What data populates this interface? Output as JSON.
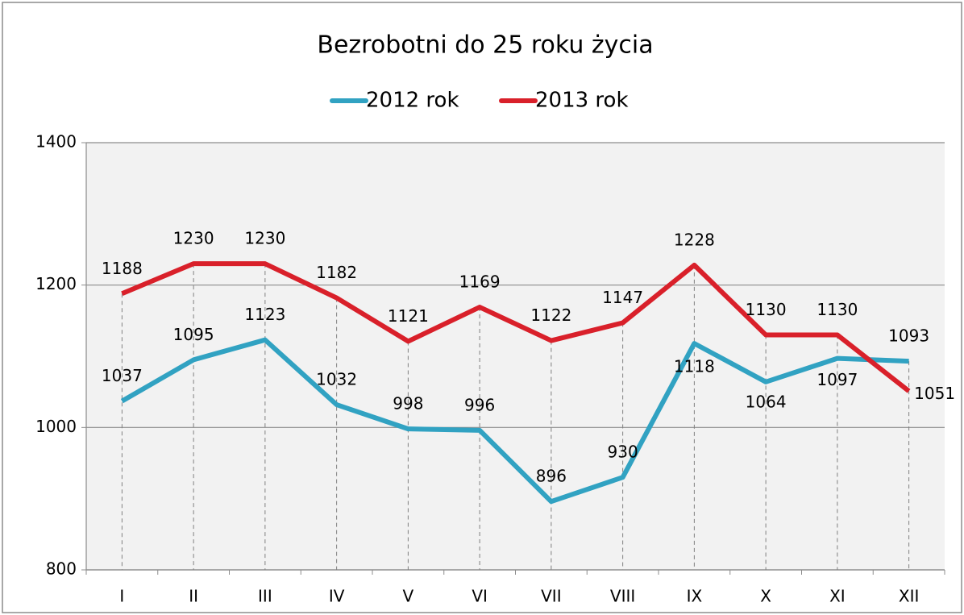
{
  "chart_data": {
    "type": "line",
    "title": "Bezrobotni do 25 roku życia",
    "categories": [
      "I",
      "II",
      "III",
      "IV",
      "V",
      "VI",
      "VII",
      "VIII",
      "IX",
      "X",
      "XI",
      "XII"
    ],
    "series": [
      {
        "name": "2012 rok",
        "color": "#31a2c2",
        "values": [
          1037,
          1095,
          1123,
          1032,
          998,
          996,
          896,
          930,
          1118,
          1064,
          1097,
          1093
        ]
      },
      {
        "name": "2013 rok",
        "color": "#d9202a",
        "values": [
          1188,
          1230,
          1230,
          1182,
          1121,
          1169,
          1122,
          1147,
          1228,
          1130,
          1130,
          1051
        ]
      }
    ],
    "ylim": [
      800,
      1400
    ],
    "yticks": [
      800,
      1000,
      1200,
      1400
    ],
    "grid": true,
    "legend": "top",
    "drop_lines": true
  }
}
